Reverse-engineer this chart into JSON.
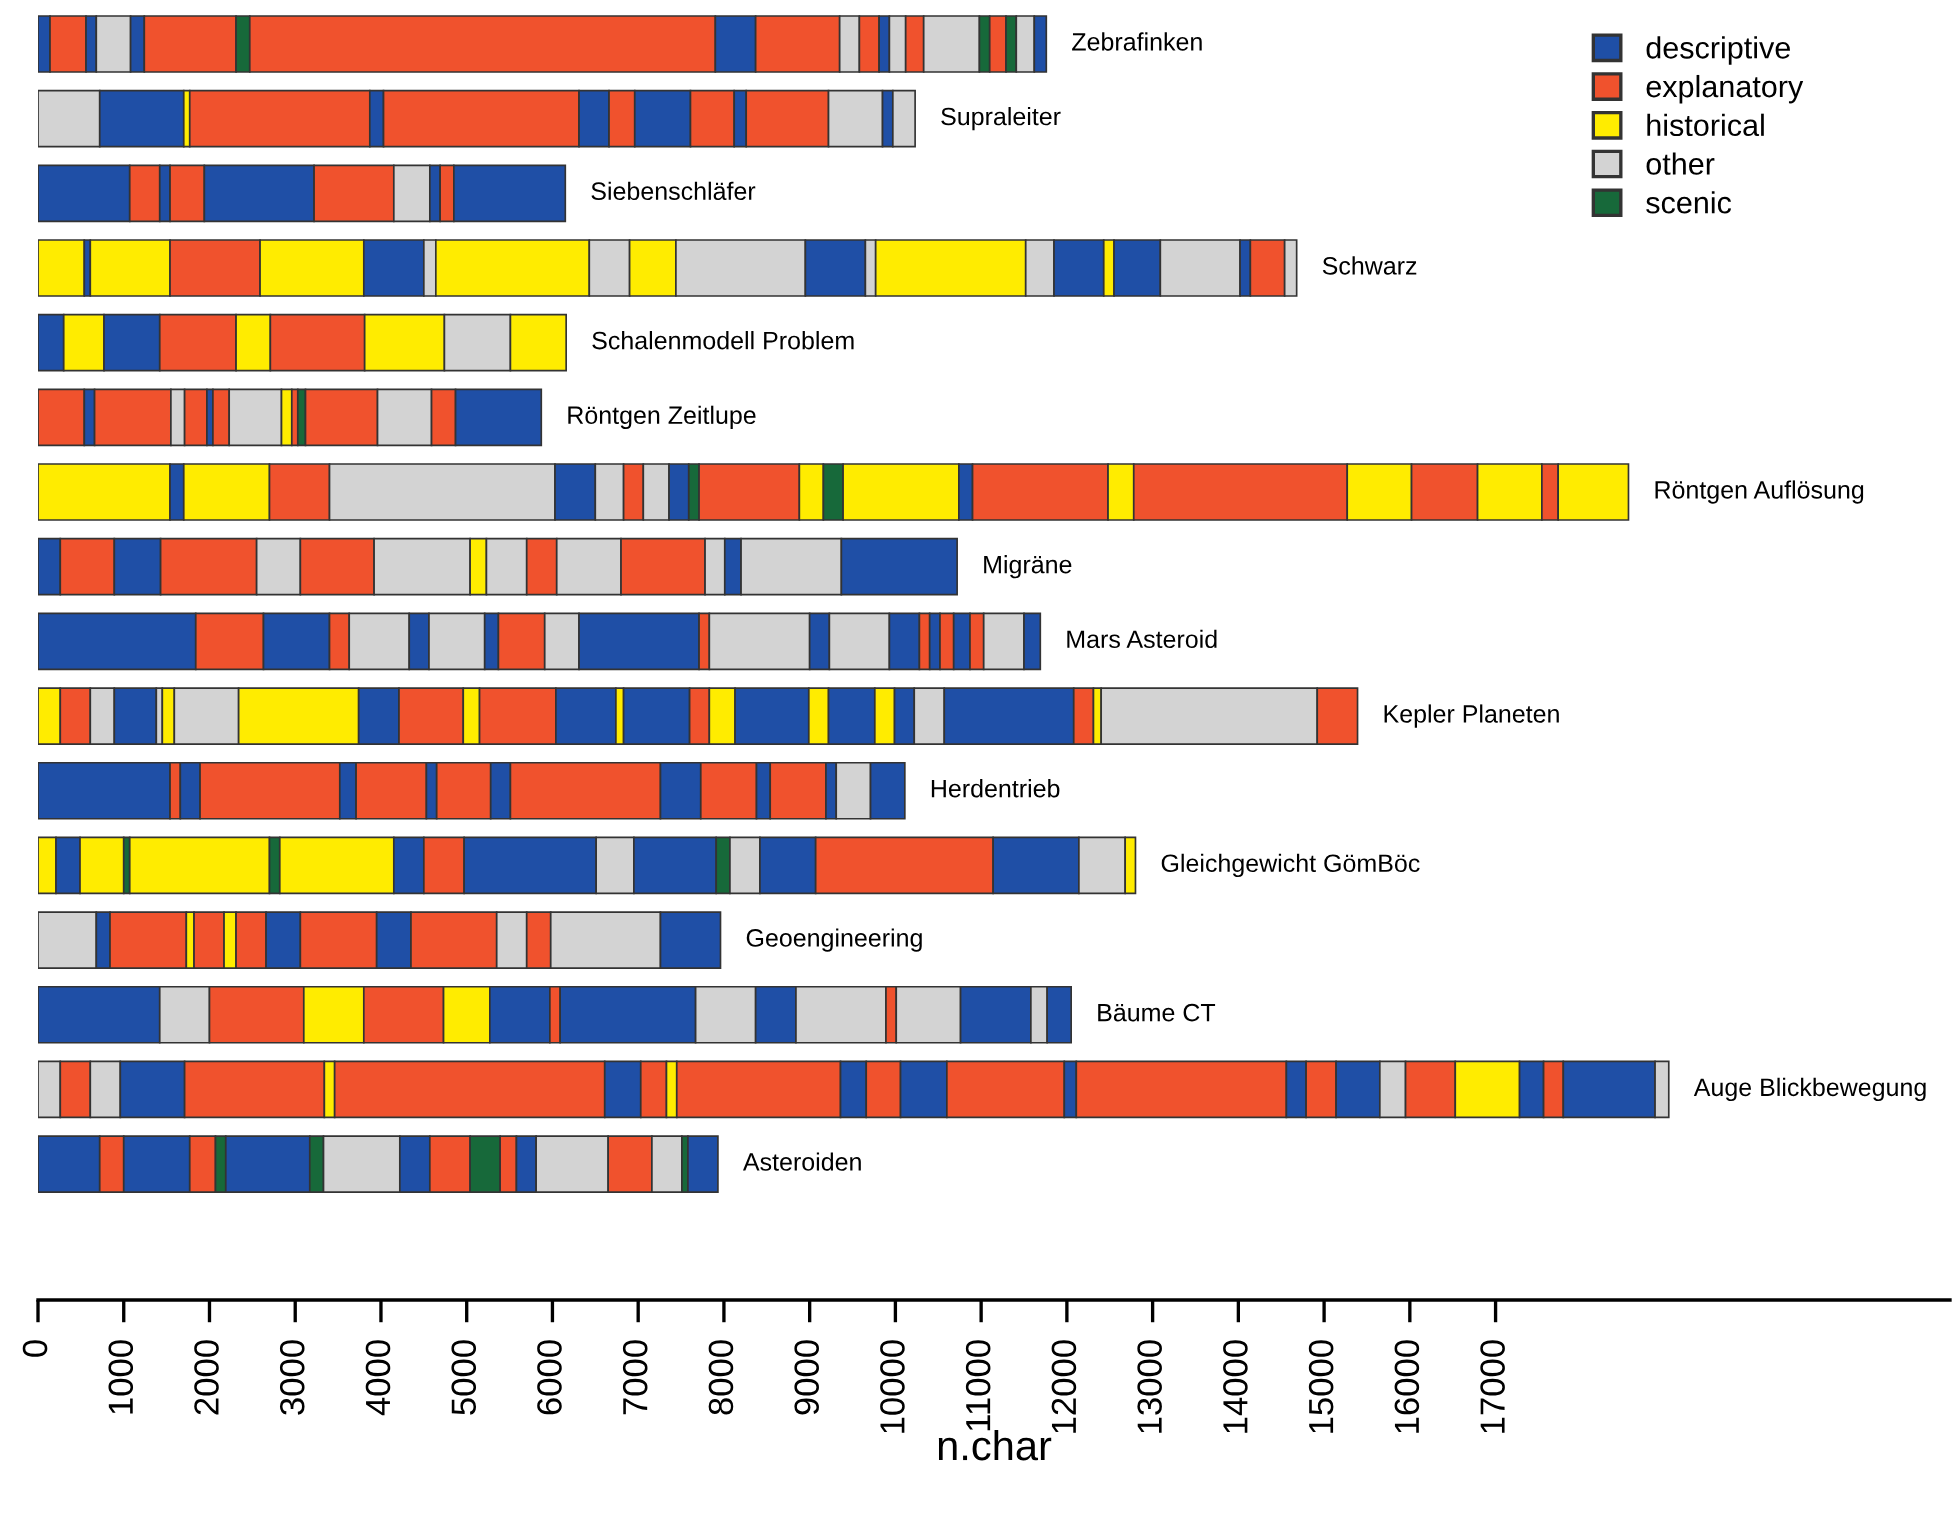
{
  "chart_data": {
    "type": "bar",
    "orientation": "horizontal",
    "stacked": true,
    "xlabel": "n.char",
    "tick_labels": "x",
    "legend": "top right",
    "categories": [
      "Zebrafinken",
      "Supraleiter",
      "Siebenschläfer",
      "Schwarz",
      "Schalenmodell Problem",
      "Röntgen Zeitlupe",
      "Röntgen Auflösung",
      "Migräne",
      "Mars Asteroid",
      "Kepler Planeten",
      "Herdentrieb",
      "Gleichgewicht GömBöc",
      "Geoengineering",
      "Bäume CT",
      "Auge Blickbewegung",
      "Asteroiden"
    ],
    "xlim": [
      0,
      22300
    ],
    "xticks": [
      0,
      1000,
      2000,
      3000,
      4000,
      5000,
      6000,
      7000,
      8000,
      9000,
      10000,
      11000,
      12000,
      13000,
      14000,
      15000,
      16000,
      17000
    ],
    "series": [
      {
        "name": "descriptive",
        "color": "#1f4fa6",
        "values": [
          null,
          null,
          null,
          null,
          null,
          null,
          null,
          null,
          null,
          null,
          null,
          null,
          null,
          null,
          null,
          null
        ]
      },
      {
        "name": "explanatory",
        "color": "#f0522d",
        "values": [
          null,
          null,
          null,
          null,
          null,
          null,
          null,
          null,
          null,
          null,
          null,
          null,
          null,
          null,
          null,
          null
        ]
      },
      {
        "name": "historical",
        "color": "#ffec00",
        "values": [
          null,
          null,
          null,
          null,
          null,
          null,
          null,
          null,
          null,
          null,
          null,
          null,
          null,
          null,
          null,
          null
        ]
      },
      {
        "name": "other",
        "color": "#d3d3d3",
        "values": [
          null,
          null,
          null,
          null,
          null,
          null,
          null,
          null,
          null,
          null,
          null,
          null,
          null,
          null,
          null,
          null
        ]
      },
      {
        "name": "scenic",
        "color": "#17693a",
        "values": [
          null,
          null,
          null,
          null,
          null,
          null,
          null,
          null,
          null,
          null,
          null,
          null,
          null,
          null,
          null,
          null
        ]
      },
      {
        "values": [
          140,
          720,
          1070,
          540,
          300,
          540,
          1540,
          260,
          1840,
          260,
          1540,
          210,
          680,
          1420,
          260,
          720
        ],
        "colors": [
          "#1f4fa6",
          "#d3d3d3",
          "#1f4fa6",
          "#ffec00",
          "#1f4fa6",
          "#f0522d",
          "#ffec00",
          "#1f4fa6",
          "#1f4fa6",
          "#ffec00",
          "#1f4fa6",
          "#ffec00",
          "#d3d3d3",
          "#1f4fa6",
          "#d3d3d3",
          "#1f4fa6"
        ]
      },
      {
        "values": [
          420,
          980,
          350,
          70,
          470,
          120,
          160,
          630,
          790,
          350,
          120,
          280,
          160,
          580,
          350,
          280
        ],
        "colors": [
          "#f0522d",
          "#1f4fa6",
          "#f0522d",
          "#1f4fa6",
          "#ffec00",
          "#1f4fa6",
          "#1f4fa6",
          "#f0522d",
          "#f0522d",
          "#f0522d",
          "#f0522d",
          "#1f4fa6",
          "#1f4fa6",
          "#d3d3d3",
          "#f0522d",
          "#f0522d"
        ]
      },
      {
        "values": [
          120,
          70,
          120,
          930,
          650,
          890,
          1000,
          540,
          770,
          280,
          230,
          510,
          890,
          1100,
          350,
          770
        ],
        "colors": [
          "#1f4fa6",
          "#ffec00",
          "#1f4fa6",
          "#ffec00",
          "#1f4fa6",
          "#f0522d",
          "#ffec00",
          "#1f4fa6",
          "#1f4fa6",
          "#d3d3d3",
          "#1f4fa6",
          "#ffec00",
          "#f0522d",
          "#f0522d",
          "#d3d3d3",
          "#1f4fa6"
        ]
      },
      {
        "values": [
          400,
          2100,
          400,
          1050,
          890,
          160,
          700,
          1120,
          230,
          490,
          1630,
          70,
          90,
          700,
          750,
          300
        ],
        "colors": [
          "#d3d3d3",
          "#f0522d",
          "#f0522d",
          "#f0522d",
          "#f0522d",
          "#d3d3d3",
          "#f0522d",
          "#f0522d",
          "#f0522d",
          "#1f4fa6",
          "#f0522d",
          "#17693a",
          "#ffec00",
          "#ffec00",
          "#1f4fa6",
          "#f0522d"
        ]
      },
      {
        "values": [
          160,
          160,
          1280,
          1210,
          400,
          260,
          2630,
          510,
          700,
          70,
          190,
          1630,
          350,
          930,
          1630,
          120
        ],
        "colors": [
          "#1f4fa6",
          "#1f4fa6",
          "#1f4fa6",
          "#ffec00",
          "#ffec00",
          "#f0522d",
          "#d3d3d3",
          "#d3d3d3",
          "#d3d3d3",
          "#d3d3d3",
          "#1f4fa6",
          "#ffec00",
          "#f0522d",
          "#f0522d",
          "#f0522d",
          "#17693a"
        ]
      },
      {
        "values": [
          1070,
          2280,
          930,
          700,
          1100,
          70,
          470,
          860,
          230,
          140,
          820,
          120,
          140,
          540,
          120,
          980
        ],
        "colors": [
          "#f0522d",
          "#f0522d",
          "#f0522d",
          "#1f4fa6",
          "#f0522d",
          "#1f4fa6",
          "#1f4fa6",
          "#f0522d",
          "#1f4fa6",
          "#ffec00",
          "#f0522d",
          "#17693a",
          "#ffec00",
          "#ffec00",
          "#ffec00",
          "#1f4fa6"
        ]
      },
      {
        "values": [
          160,
          350,
          420,
          140,
          930,
          190,
          330,
          1120,
          650,
          750,
          120,
          1330,
          350,
          700,
          3150,
          160
        ],
        "colors": [
          "#17693a",
          "#1f4fa6",
          "#d3d3d3",
          "#d3d3d3",
          "#ffec00",
          "#f0522d",
          "#d3d3d3",
          "#d3d3d3",
          "#d3d3d3",
          "#d3d3d3",
          "#1f4fa6",
          "#ffec00",
          "#f0522d",
          "#1f4fa6",
          "#f0522d",
          "#17693a"
        ]
      },
      {
        "values": [
          5430,
          300,
          120,
          1790,
          770,
          610,
          230,
          190,
          160,
          1400,
          630,
          350,
          400,
          120,
          420,
          890
        ],
        "colors": [
          "#f0522d",
          "#f0522d",
          "#1f4fa6",
          "#ffec00",
          "#d3d3d3",
          "#d3d3d3",
          "#f0522d",
          "#ffec00",
          "#1f4fa6",
          "#ffec00",
          "#f0522d",
          "#1f4fa6",
          "#1f4fa6",
          "#f0522d",
          "#1f4fa6",
          "#d3d3d3"
        ]
      },
      {
        "values": [
          470,
          650,
          160,
          470,
          650,
          120,
          300,
          470,
          540,
          470,
          230,
          470,
          890,
          1580,
          300,
          350
        ],
        "colors": [
          "#1f4fa6",
          "#1f4fa6",
          "#f0522d",
          "#d3d3d3",
          "#ffec00",
          "#ffec00",
          "#d3d3d3",
          "#d3d3d3",
          "#f0522d",
          "#1f4fa6",
          "#1f4fa6",
          "#f0522d",
          "#f0522d",
          "#1f4fa6",
          "#f0522d",
          "#1f4fa6"
        ]
      },
      {
        "values": [
          980,
          510,
          1300,
          540,
          null,
          70,
          230,
          350,
          400,
          750,
          1750,
          1540,
          400,
          700,
          120,
          470
        ],
        "colors": [
          "#f0522d",
          "#f0522d",
          "#1f4fa6",
          "#ffec00",
          null,
          "#f0522d",
          "#1f4fa6",
          "#f0522d",
          "#d3d3d3",
          "#f0522d",
          "#f0522d",
          "#1f4fa6",
          "#1f4fa6",
          "#d3d3d3",
          "#ffec00",
          "#f0522d"
        ]
      },
      {
        "values": [
          230,
          140,
          null,
          1510,
          null,
          90,
          120,
          750,
          1400,
          190,
          470,
          440,
          1000,
          470,
          1910,
          350
        ],
        "colors": [
          "#d3d3d3",
          "#1f4fa6",
          null,
          "#d3d3d3",
          null,
          "#17693a",
          "#17693a",
          "#d3d3d3",
          "#1f4fa6",
          "#ffec00",
          "#1f4fa6",
          "#d3d3d3",
          "#f0522d",
          "#1f4fa6",
          "#f0522d",
          "#17693a"
        ]
      },
      {
        "values": [
          230,
          960,
          null,
          700,
          null,
          840,
          1170,
          980,
          120,
          890,
          650,
          960,
          350,
          1050,
          300,
          190
        ],
        "colors": [
          "#f0522d",
          "#f0522d",
          null,
          "#1f4fa6",
          null,
          "#f0522d",
          "#f0522d",
          "#f0522d",
          "#f0522d",
          "#f0522d",
          "#f0522d",
          "#1f4fa6",
          "#d3d3d3",
          "#d3d3d3",
          "#1f4fa6",
          "#f0522d"
        ]
      },
      {
        "values": [
          120,
          630,
          null,
          120,
          null,
          630,
          280,
          230,
          1170,
          700,
          160,
          160,
          280,
          120,
          400,
          230
        ],
        "colors": [
          "#1f4fa6",
          "#d3d3d3",
          null,
          "#d3d3d3",
          null,
          "#d3d3d3",
          "#ffec00",
          "#d3d3d3",
          "#d3d3d3",
          "#1f4fa6",
          "#1f4fa6",
          "#17693a",
          "#f0522d",
          "#f0522d",
          "#f0522d",
          "#1f4fa6"
        ]
      },
      {
        "values": [
          190,
          120,
          null,
          1750,
          null,
          280,
          230,
          190,
          230,
          90,
          650,
          350,
          1280,
          750,
          540,
          840
        ],
        "colors": [
          "#d3d3d3",
          "#1f4fa6",
          null,
          "#ffec00",
          null,
          "#f0522d",
          "#17693a",
          "#1f4fa6",
          "#1f4fa6",
          "#ffec00",
          "#f0522d",
          "#d3d3d3",
          "#d3d3d3",
          "#d3d3d3",
          "#1f4fa6",
          "#d3d3d3"
        ]
      },
      {
        "values": [
          210,
          260,
          null,
          330,
          null,
          1000,
          1350,
          1170,
          700,
          770,
          120,
          650,
          700,
          820,
          1370,
          510
        ],
        "colors": [
          "#f0522d",
          "#d3d3d3",
          null,
          "#d3d3d3",
          null,
          "#1f4fa6",
          "#ffec00",
          "#d3d3d3",
          "#d3d3d3",
          "#1f4fa6",
          "#1f4fa6",
          "#1f4fa6",
          "#1f4fa6",
          "#1f4fa6",
          "#f0522d",
          "#f0522d"
        ]
      },
      {
        "values": [
          650,
          null,
          null,
          580,
          null,
          null,
          160,
          1350,
          350,
          230,
          400,
          2070,
          null,
          190,
          140,
          350
        ],
        "colors": [
          "#d3d3d3",
          null,
          null,
          "#1f4fa6",
          null,
          null,
          "#1f4fa6",
          "#1f4fa6",
          "#1f4fa6",
          "#f0522d",
          "#d3d3d3",
          "#f0522d",
          null,
          "#d3d3d3",
          "#1f4fa6",
          "#d3d3d3"
        ]
      },
      {
        "values": [
          120,
          null,
          null,
          120,
          null,
          null,
          1580,
          null,
          120,
          300,
          400,
          1000,
          null,
          280,
          2450,
          70
        ],
        "colors": [
          "#17693a",
          null,
          null,
          "#ffec00",
          null,
          null,
          "#f0522d",
          null,
          "#f0522d",
          "#ffec00",
          "#1f4fa6",
          "#1f4fa6",
          null,
          "#1f4fa6",
          "#f0522d",
          "#17693a"
        ]
      },
      {
        "values": [
          190,
          null,
          null,
          540,
          null,
          null,
          300,
          null,
          120,
          860,
          null,
          540,
          null,
          null,
          230,
          350
        ],
        "colors": [
          "#f0522d",
          null,
          null,
          "#1f4fa6",
          null,
          null,
          "#ffec00",
          null,
          "#1f4fa6",
          "#1f4fa6",
          null,
          "#d3d3d3",
          null,
          null,
          "#1f4fa6",
          "#1f4fa6"
        ]
      },
      {
        "values": [
          120,
          null,
          null,
          930,
          null,
          null,
          2490,
          null,
          160,
          230,
          null,
          120,
          null,
          null,
          350,
          null
        ],
        "colors": [
          "#17693a",
          null,
          null,
          "#d3d3d3",
          null,
          null,
          "#f0522d",
          null,
          "#f0522d",
          "#ffec00",
          null,
          "#ffec00",
          null,
          null,
          "#f0522d",
          null
        ]
      },
      {
        "values": [
          210,
          null,
          null,
          120,
          null,
          null,
          750,
          null,
          190,
          540,
          null,
          null,
          null,
          null,
          510,
          null
        ],
        "colors": [
          "#d3d3d3",
          null,
          null,
          "#1f4fa6",
          null,
          null,
          "#ffec00",
          null,
          "#1f4fa6",
          "#1f4fa6",
          null,
          null,
          null,
          null,
          "#1f4fa6",
          null
        ]
      },
      {
        "values": [
          140,
          null,
          null,
          400,
          null,
          null,
          770,
          null,
          160,
          230,
          null,
          null,
          null,
          null,
          300,
          null
        ],
        "colors": [
          "#1f4fa6",
          null,
          null,
          "#f0522d",
          null,
          null,
          "#f0522d",
          null,
          "#f0522d",
          "#ffec00",
          null,
          null,
          null,
          null,
          "#d3d3d3",
          null
        ]
      },
      {
        "values": [
          null,
          null,
          null,
          140,
          null,
          null,
          750,
          null,
          470,
          230,
          null,
          null,
          null,
          null,
          580,
          null
        ],
        "colors": [
          null,
          null,
          null,
          "#d3d3d3",
          null,
          null,
          "#ffec00",
          null,
          "#d3d3d3",
          "#1f4fa6",
          null,
          null,
          null,
          null,
          "#f0522d",
          null
        ]
      },
      {
        "values": [
          null,
          null,
          null,
          null,
          null,
          null,
          190,
          null,
          190,
          350,
          null,
          null,
          null,
          null,
          750,
          null
        ],
        "colors": [
          null,
          null,
          null,
          null,
          null,
          null,
          "#f0522d",
          null,
          "#1f4fa6",
          "#d3d3d3",
          null,
          null,
          null,
          null,
          "#ffec00",
          null
        ]
      },
      {
        "values": [
          null,
          null,
          null,
          null,
          null,
          null,
          820,
          null,
          null,
          1510,
          null,
          null,
          null,
          null,
          280,
          null
        ],
        "colors": [
          null,
          null,
          null,
          null,
          null,
          null,
          "#ffec00",
          null,
          null,
          "#1f4fa6",
          null,
          null,
          null,
          null,
          "#1f4fa6",
          null
        ]
      },
      {
        "values": [
          null,
          null,
          null,
          null,
          null,
          null,
          null,
          null,
          null,
          230,
          null,
          null,
          null,
          null,
          230,
          null
        ],
        "colors": [
          null,
          null,
          null,
          null,
          null,
          null,
          null,
          null,
          null,
          "#f0522d",
          null,
          null,
          null,
          null,
          "#f0522d",
          null
        ]
      },
      {
        "values": [
          null,
          null,
          null,
          null,
          null,
          null,
          null,
          null,
          null,
          90,
          null,
          null,
          null,
          null,
          1070,
          null
        ],
        "colors": [
          null,
          null,
          null,
          null,
          null,
          null,
          null,
          null,
          null,
          "#ffec00",
          null,
          null,
          null,
          null,
          "#1f4fa6",
          null
        ]
      },
      {
        "values": [
          null,
          null,
          null,
          null,
          null,
          null,
          null,
          null,
          null,
          2520,
          null,
          null,
          null,
          null,
          160,
          null
        ],
        "colors": [
          null,
          null,
          null,
          null,
          null,
          null,
          null,
          null,
          null,
          "#d3d3d3",
          null,
          null,
          null,
          null,
          "#d3d3d3",
          null
        ]
      },
      {
        "values": [
          null,
          null,
          null,
          null,
          null,
          null,
          null,
          null,
          null,
          470,
          null,
          null,
          null,
          null,
          null,
          null
        ],
        "colors": [
          null,
          null,
          null,
          null,
          null,
          null,
          null,
          null,
          null,
          "#f0522d",
          null,
          null,
          null,
          null,
          null,
          null
        ]
      }
    ]
  }
}
